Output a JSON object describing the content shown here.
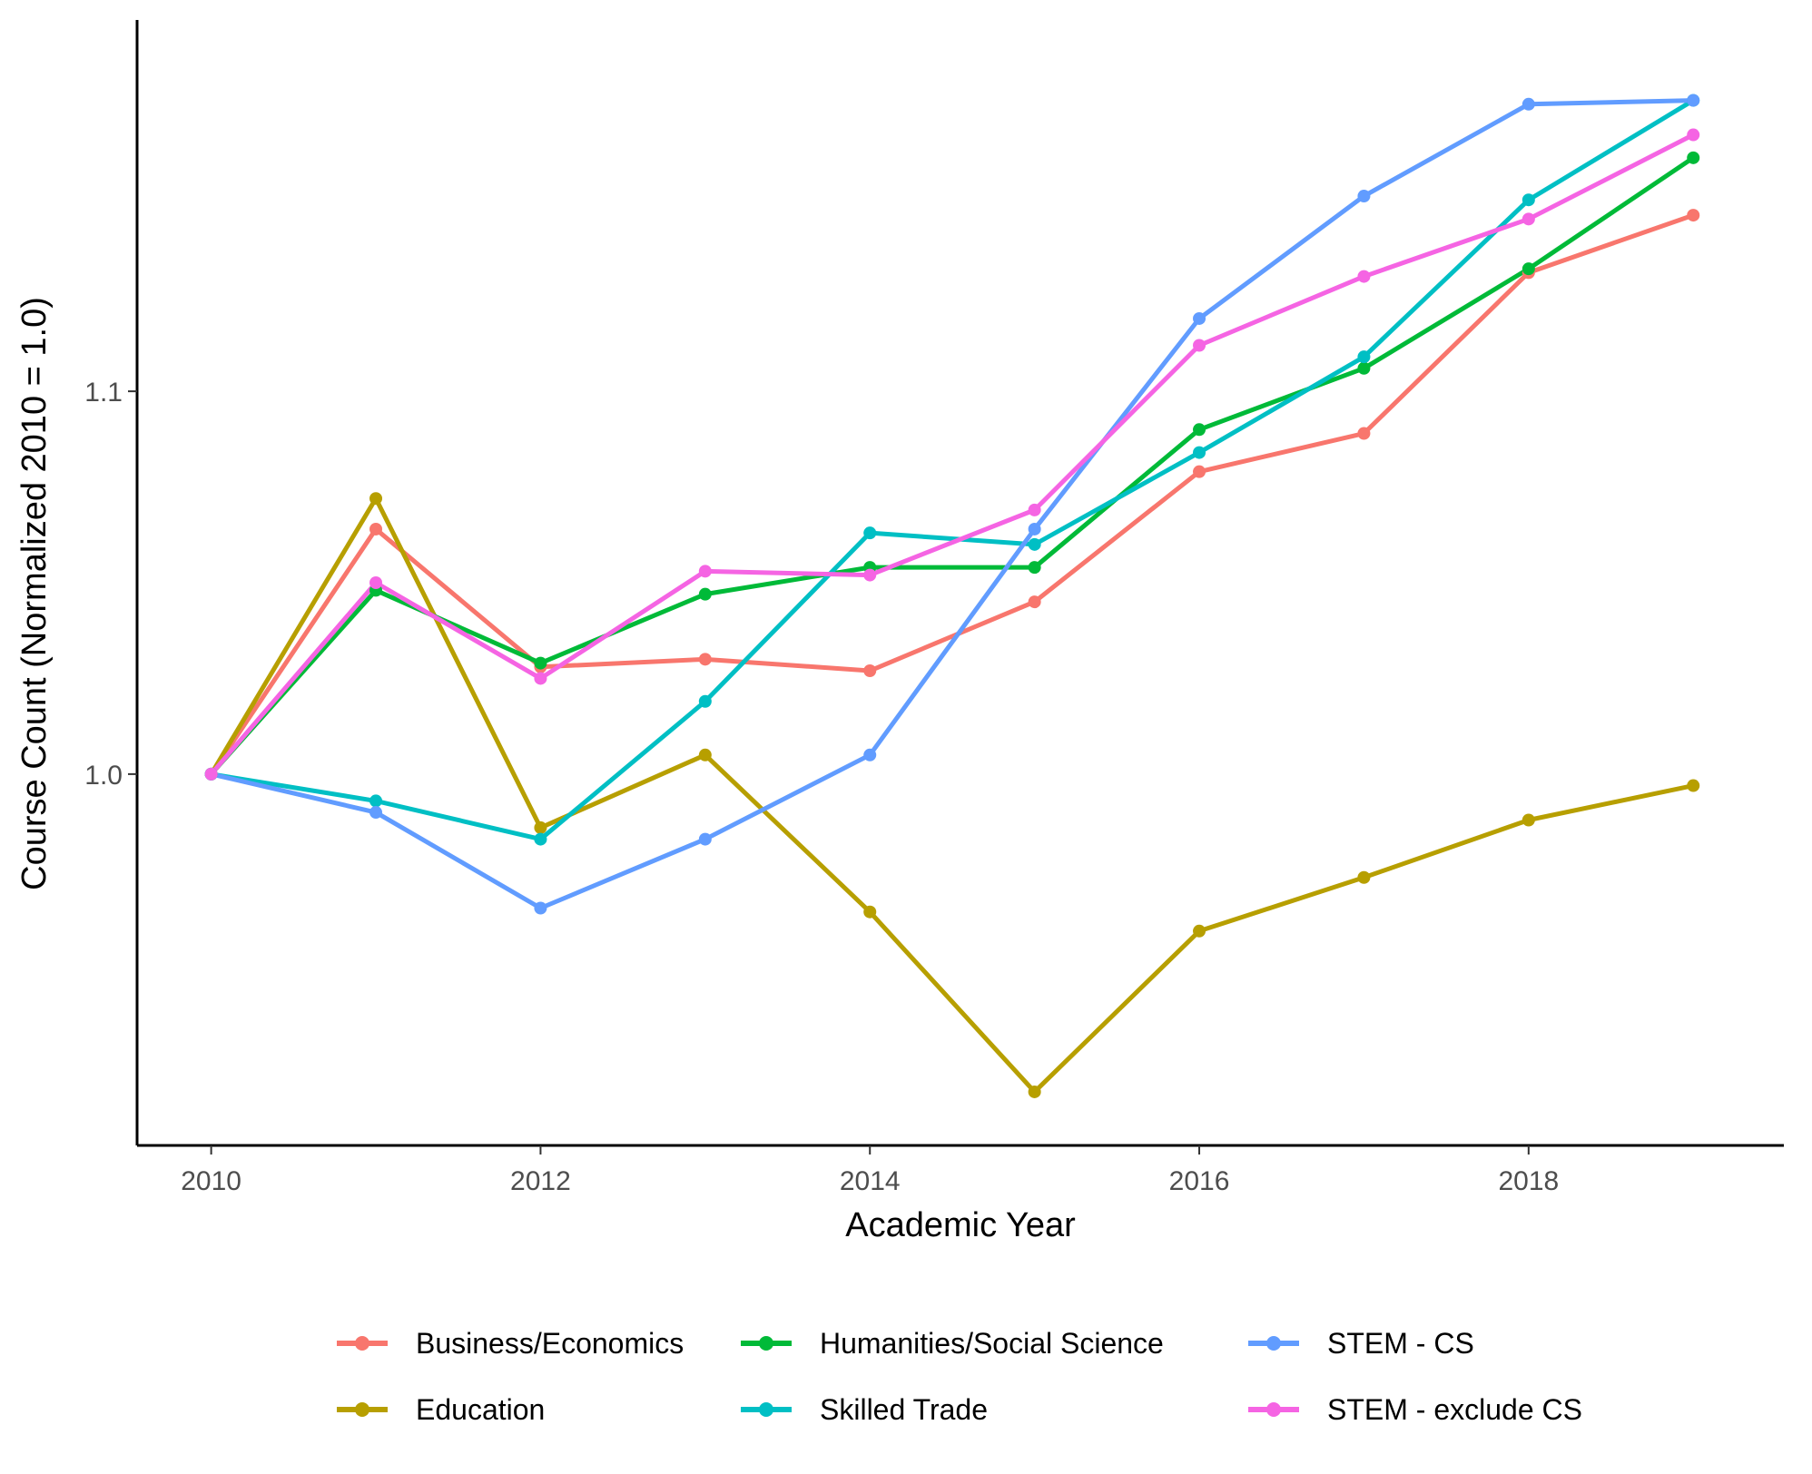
{
  "chart_data": {
    "type": "line",
    "title": "",
    "xlabel": "Academic Year",
    "ylabel": "Course Count (Normalized 2010 = 1.0)",
    "x": [
      2010,
      2011,
      2012,
      2013,
      2014,
      2015,
      2016,
      2017,
      2018,
      2019
    ],
    "xlim": [
      2009.55,
      2019.55
    ],
    "ylim": [
      0.903,
      1.197
    ],
    "xticks": [
      2010,
      2012,
      2014,
      2016,
      2018
    ],
    "xtick_labels": [
      "2010",
      "2012",
      "2014",
      "2016",
      "2018"
    ],
    "yticks": [
      1.0,
      1.1
    ],
    "ytick_labels": [
      "1.0",
      "1.1"
    ],
    "grid": false,
    "legend_position": "bottom",
    "series": [
      {
        "name": "Business/Economics",
        "color": "#F8766D",
        "values": [
          1.0,
          1.064,
          1.028,
          1.03,
          1.027,
          1.045,
          1.079,
          1.089,
          1.131,
          1.146
        ]
      },
      {
        "name": "Education",
        "color": "#B79F00",
        "values": [
          1.0,
          1.072,
          0.986,
          1.005,
          0.964,
          0.917,
          0.959,
          0.973,
          0.988,
          0.997
        ]
      },
      {
        "name": "Humanities/Social Science",
        "color": "#00BA38",
        "values": [
          1.0,
          1.048,
          1.029,
          1.047,
          1.054,
          1.054,
          1.09,
          1.106,
          1.132,
          1.161
        ]
      },
      {
        "name": "Skilled Trade",
        "color": "#00BFC4",
        "values": [
          1.0,
          0.993,
          0.983,
          1.019,
          1.063,
          1.06,
          1.084,
          1.109,
          1.15,
          1.176
        ]
      },
      {
        "name": "STEM - CS",
        "color": "#619CFF",
        "values": [
          1.0,
          0.99,
          0.965,
          0.983,
          1.005,
          1.064,
          1.119,
          1.151,
          1.175,
          1.176
        ]
      },
      {
        "name": "STEM - exclude CS",
        "color": "#F564E3",
        "values": [
          1.0,
          1.05,
          1.025,
          1.053,
          1.052,
          1.069,
          1.112,
          1.13,
          1.145,
          1.167
        ]
      }
    ]
  }
}
